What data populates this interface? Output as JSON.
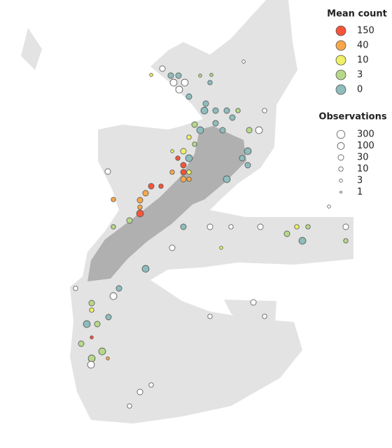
{
  "chart_data": {
    "type": "bubble",
    "xlim": [
      166,
      180
    ],
    "ylim": [
      -33,
      -49
    ],
    "color_title": "Mean count",
    "color_levels": [
      150,
      40,
      10,
      3,
      0
    ],
    "color_colors": [
      "#f4553a",
      "#f7a84a",
      "#eef065",
      "#b7d88a",
      "#8fbcbc"
    ],
    "no_count_color": "#ffffff",
    "size_title": "Observations",
    "size_levels": [
      300,
      100,
      30,
      10,
      3,
      1
    ],
    "x": [
      174.7,
      171.8,
      172.1,
      172.375,
      171.4,
      173.15,
      173.55,
      172.2,
      172.6,
      173.5,
      172.4,
      172.75,
      173.35,
      173.3,
      173.7,
      174.1,
      174.5,
      175.45,
      174.3,
      173.7,
      172.95,
      173.15,
      173.95,
      174.9,
      175.25,
      172.75,
      172.95,
      172.55,
      172.15,
      174.85,
      172.75,
      172.35,
      174.65,
      172.55,
      174.85,
      169.85,
      172.15,
      172.55,
      172.75,
      171.4,
      171.75,
      172.55,
      172.75,
      174.1,
      171.2,
      171.0,
      170.05,
      171.0,
      171.0,
      170.625,
      170.05,
      172.55,
      173.5,
      174.25,
      175.3,
      176.6,
      177.0,
      178.35,
      176.25,
      176.8,
      178.35,
      172.15,
      173.9,
      171.2,
      170.25,
      170.05,
      169.275,
      169.275,
      169.1,
      169.475,
      169.875,
      169.275,
      168.9,
      169.65,
      169.275,
      169.25,
      169.85,
      171.4,
      171.0,
      170.625,
      175.05,
      175.45,
      173.5,
      168.7,
      177.75
    ],
    "y": [
      -35.2,
      -35.45,
      -35.7,
      -35.7,
      -35.675,
      -35.7,
      -35.675,
      -35.95,
      -35.95,
      -35.95,
      -36.2,
      -36.45,
      -36.7,
      -36.95,
      -36.95,
      -36.95,
      -36.95,
      -36.95,
      -37.2,
      -37.4,
      -37.45,
      -37.65,
      -37.65,
      -37.65,
      -37.65,
      -37.9,
      -38.15,
      -38.4,
      -38.4,
      -38.4,
      -38.65,
      -38.65,
      -38.65,
      -38.9,
      -38.9,
      -39.125,
      -39.15,
      -39.15,
      -39.15,
      -39.65,
      -39.65,
      -39.4,
      -39.4,
      -39.4,
      -39.9,
      -40.15,
      -40.125,
      -40.4,
      -40.625,
      -40.875,
      -41.1,
      -41.1,
      -41.1,
      -41.1,
      -41.1,
      -41.1,
      -41.1,
      -41.1,
      -41.35,
      -41.6,
      -41.6,
      -41.85,
      -41.85,
      -42.6,
      -43.3,
      -43.575,
      -43.825,
      -44.075,
      -44.575,
      -44.575,
      -44.325,
      -45.05,
      -45.275,
      -45.55,
      -45.8,
      -46.025,
      -45.8,
      -46.75,
      -47.0,
      -47.5,
      -43.8,
      -44.3,
      -44.3,
      -43.3,
      -40.375
    ],
    "mean": [
      null,
      null,
      0,
      0,
      10,
      3,
      3,
      null,
      null,
      0,
      null,
      0,
      0,
      0,
      0,
      0,
      3,
      null,
      0,
      0,
      3,
      0,
      0,
      3,
      null,
      10,
      3,
      10,
      10,
      0,
      0,
      150,
      0,
      150,
      0,
      null,
      40,
      150,
      10,
      150,
      150,
      40,
      40,
      0,
      40,
      40,
      40,
      40,
      150,
      3,
      3,
      0,
      null,
      null,
      null,
      10,
      3,
      null,
      3,
      0,
      3,
      null,
      10,
      0,
      0,
      null,
      3,
      10,
      0,
      3,
      0,
      150,
      3,
      3,
      3,
      null,
      40,
      null,
      null,
      null,
      null,
      null,
      null,
      null,
      null
    ],
    "size": [
      3,
      30,
      30,
      30,
      3,
      3,
      3,
      100,
      100,
      10,
      100,
      30,
      30,
      100,
      30,
      30,
      10,
      10,
      30,
      30,
      30,
      100,
      30,
      30,
      100,
      10,
      10,
      30,
      3,
      100,
      100,
      10,
      30,
      30,
      30,
      30,
      10,
      30,
      10,
      30,
      10,
      30,
      10,
      100,
      30,
      30,
      10,
      10,
      100,
      30,
      10,
      30,
      30,
      10,
      30,
      10,
      10,
      30,
      30,
      100,
      10,
      30,
      3,
      100,
      30,
      100,
      30,
      10,
      100,
      30,
      30,
      3,
      30,
      100,
      100,
      100,
      3,
      10,
      30,
      10,
      30,
      10,
      10,
      10,
      3
    ]
  }
}
